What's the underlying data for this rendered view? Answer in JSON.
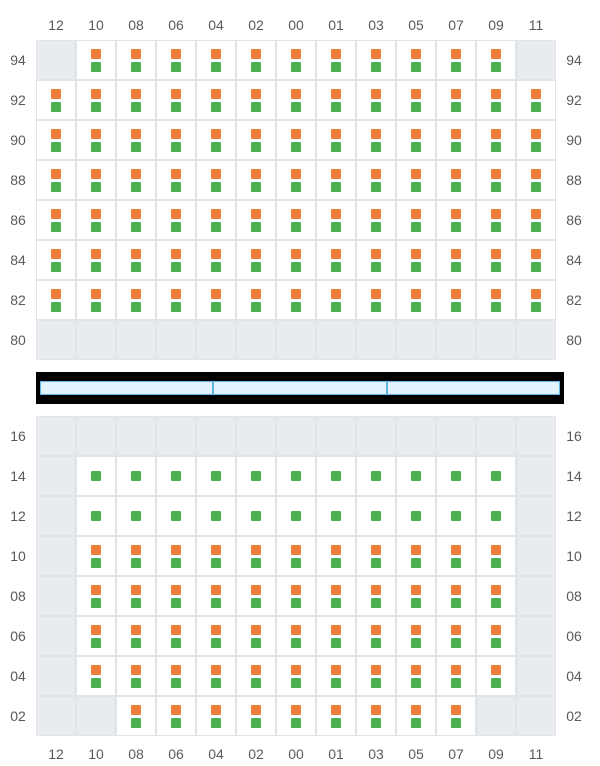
{
  "colors": {
    "orange": "#ed7d3a",
    "green": "#4caf50",
    "empty_bg": "#e9ecef",
    "cell_border": "#e1e4e8",
    "divider_bg": "#000000",
    "divider_seg_bg": "#e3f2fd",
    "divider_seg_border": "#5fb4e8",
    "label_color": "#5a5a5a"
  },
  "layout": {
    "cols": [
      "12",
      "10",
      "08",
      "06",
      "04",
      "02",
      "00",
      "01",
      "03",
      "05",
      "07",
      "09",
      "11"
    ],
    "cell_size": 40,
    "square_size": 10
  },
  "top": {
    "rows": [
      "94",
      "92",
      "90",
      "88",
      "86",
      "84",
      "82",
      "80"
    ],
    "cells": {
      "94": {
        "12": "E",
        "10": "OG",
        "08": "OG",
        "06": "OG",
        "04": "OG",
        "02": "OG",
        "00": "OG",
        "01": "OG",
        "03": "OG",
        "05": "OG",
        "07": "OG",
        "09": "OG",
        "11": "E"
      },
      "92": {
        "12": "OG",
        "10": "OG",
        "08": "OG",
        "06": "OG",
        "04": "OG",
        "02": "OG",
        "00": "OG",
        "01": "OG",
        "03": "OG",
        "05": "OG",
        "07": "OG",
        "09": "OG",
        "11": "OG"
      },
      "90": {
        "12": "OG",
        "10": "OG",
        "08": "OG",
        "06": "OG",
        "04": "OG",
        "02": "OG",
        "00": "OG",
        "01": "OG",
        "03": "OG",
        "05": "OG",
        "07": "OG",
        "09": "OG",
        "11": "OG"
      },
      "88": {
        "12": "OG",
        "10": "OG",
        "08": "OG",
        "06": "OG",
        "04": "OG",
        "02": "OG",
        "00": "OG",
        "01": "OG",
        "03": "OG",
        "05": "OG",
        "07": "OG",
        "09": "OG",
        "11": "OG"
      },
      "86": {
        "12": "OG",
        "10": "OG",
        "08": "OG",
        "06": "OG",
        "04": "OG",
        "02": "OG",
        "00": "OG",
        "01": "OG",
        "03": "OG",
        "05": "OG",
        "07": "OG",
        "09": "OG",
        "11": "OG"
      },
      "84": {
        "12": "OG",
        "10": "OG",
        "08": "OG",
        "06": "OG",
        "04": "OG",
        "02": "OG",
        "00": "OG",
        "01": "OG",
        "03": "OG",
        "05": "OG",
        "07": "OG",
        "09": "OG",
        "11": "OG"
      },
      "82": {
        "12": "OG",
        "10": "OG",
        "08": "OG",
        "06": "OG",
        "04": "OG",
        "02": "OG",
        "00": "OG",
        "01": "OG",
        "03": "OG",
        "05": "OG",
        "07": "OG",
        "09": "OG",
        "11": "OG"
      },
      "80": {
        "12": "E",
        "10": "E",
        "08": "E",
        "06": "E",
        "04": "E",
        "02": "E",
        "00": "E",
        "01": "E",
        "03": "E",
        "05": "E",
        "07": "E",
        "09": "E",
        "11": "E"
      }
    }
  },
  "bottom": {
    "rows": [
      "16",
      "14",
      "12",
      "10",
      "08",
      "06",
      "04",
      "02"
    ],
    "cells": {
      "16": {
        "12": "E",
        "10": "E",
        "08": "E",
        "06": "E",
        "04": "E",
        "02": "E",
        "00": "E",
        "01": "E",
        "03": "E",
        "05": "E",
        "07": "E",
        "09": "E",
        "11": "E"
      },
      "14": {
        "12": "E",
        "10": "G",
        "08": "G",
        "06": "G",
        "04": "G",
        "02": "G",
        "00": "G",
        "01": "G",
        "03": "G",
        "05": "G",
        "07": "G",
        "09": "G",
        "11": "E"
      },
      "12": {
        "12": "E",
        "10": "G",
        "08": "G",
        "06": "G",
        "04": "G",
        "02": "G",
        "00": "G",
        "01": "G",
        "03": "G",
        "05": "G",
        "07": "G",
        "09": "G",
        "11": "E"
      },
      "10": {
        "12": "E",
        "10": "OG",
        "08": "OG",
        "06": "OG",
        "04": "OG",
        "02": "OG",
        "00": "OG",
        "01": "OG",
        "03": "OG",
        "05": "OG",
        "07": "OG",
        "09": "OG",
        "11": "E"
      },
      "08": {
        "12": "E",
        "10": "OG",
        "08": "OG",
        "06": "OG",
        "04": "OG",
        "02": "OG",
        "00": "OG",
        "01": "OG",
        "03": "OG",
        "05": "OG",
        "07": "OG",
        "09": "OG",
        "11": "E"
      },
      "06": {
        "12": "E",
        "10": "OG",
        "08": "OG",
        "06": "OG",
        "04": "OG",
        "02": "OG",
        "00": "OG",
        "01": "OG",
        "03": "OG",
        "05": "OG",
        "07": "OG",
        "09": "OG",
        "11": "E"
      },
      "04": {
        "12": "E",
        "10": "OG",
        "08": "OG",
        "06": "OG",
        "04": "OG",
        "02": "OG",
        "00": "OG",
        "01": "OG",
        "03": "OG",
        "05": "OG",
        "07": "OG",
        "09": "OG",
        "11": "E"
      },
      "02": {
        "12": "E",
        "10": "E",
        "08": "OG",
        "06": "OG",
        "04": "OG",
        "02": "OG",
        "00": "OG",
        "01": "OG",
        "03": "OG",
        "05": "OG",
        "07": "OG",
        "09": "E",
        "11": "E"
      }
    }
  },
  "divider": {
    "segments": 3
  }
}
